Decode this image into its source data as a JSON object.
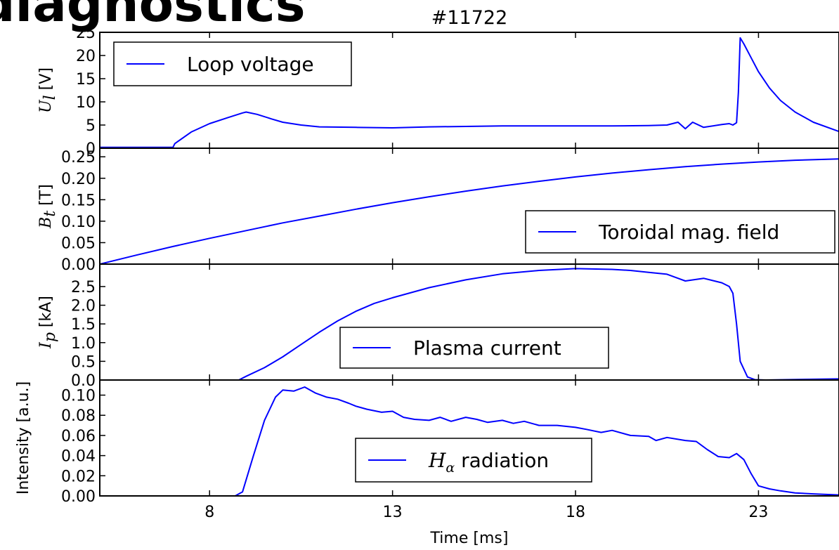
{
  "page": {
    "title": "diagnostics",
    "shot": "#11722",
    "line_color": "#0000ff"
  },
  "chart_data": {
    "type": "line",
    "shared_x": true,
    "xlabel": "Time [ms]",
    "xlim": [
      5,
      25.2
    ],
    "xticks": [
      8,
      13,
      18,
      23
    ],
    "xticklabels": [
      "8",
      "13",
      "18",
      "23"
    ],
    "panels": [
      {
        "ylabel_symbol": "U_l",
        "ylabel_unit": "[V]",
        "ylim": [
          0,
          25
        ],
        "yticks": [
          0,
          5,
          10,
          15,
          20,
          25
        ],
        "yticklabels": [
          "0",
          "5",
          "10",
          "15",
          "20",
          "25"
        ],
        "legend": "Loop voltage",
        "legend_loc": "upper left",
        "series": {
          "name": "Loop voltage",
          "x": [
            5.0,
            7.0,
            7.05,
            7.5,
            8.0,
            8.5,
            8.9,
            9.0,
            9.3,
            9.7,
            10.0,
            10.5,
            11.0,
            12.0,
            13.0,
            14.0,
            15.0,
            16.0,
            17.0,
            18.0,
            19.0,
            20.0,
            20.5,
            20.8,
            21.0,
            21.2,
            21.5,
            22.0,
            22.2,
            22.3,
            22.4,
            22.45,
            22.5,
            22.6,
            22.8,
            23.0,
            23.3,
            23.6,
            24.0,
            24.5,
            25.2
          ],
          "y": [
            0.2,
            0.2,
            1.0,
            3.5,
            5.3,
            6.6,
            7.6,
            7.8,
            7.3,
            6.3,
            5.6,
            5.0,
            4.6,
            4.5,
            4.4,
            4.6,
            4.7,
            4.8,
            4.8,
            4.8,
            4.8,
            4.9,
            5.0,
            5.6,
            4.2,
            5.6,
            4.5,
            5.1,
            5.3,
            5.0,
            5.5,
            12.0,
            23.8,
            22.5,
            19.5,
            16.5,
            13.0,
            10.3,
            7.8,
            5.6,
            3.6
          ]
        }
      },
      {
        "ylabel_symbol": "B_t",
        "ylabel_unit": "[T]",
        "ylim": [
          0,
          0.27
        ],
        "yticks": [
          0.0,
          0.05,
          0.1,
          0.15,
          0.2,
          0.25
        ],
        "yticklabels": [
          "0.00",
          "0.05",
          "0.10",
          "0.15",
          "0.20",
          "0.25"
        ],
        "legend": "Toroidal mag. field",
        "legend_loc": "lower right",
        "series": {
          "name": "Toroidal mag. field",
          "x": [
            5,
            6,
            7,
            8,
            9,
            10,
            11,
            12,
            13,
            14,
            15,
            16,
            17,
            18,
            19,
            20,
            21,
            22,
            23,
            24,
            25.2
          ],
          "y": [
            0.0,
            0.021,
            0.041,
            0.06,
            0.078,
            0.096,
            0.112,
            0.128,
            0.143,
            0.157,
            0.17,
            0.182,
            0.193,
            0.203,
            0.212,
            0.22,
            0.227,
            0.233,
            0.238,
            0.242,
            0.245
          ]
        }
      },
      {
        "ylabel_symbol": "I_p",
        "ylabel_unit": "[kA]",
        "ylim": [
          0,
          3.1
        ],
        "yticks": [
          0.0,
          0.5,
          1.0,
          1.5,
          2.0,
          2.5
        ],
        "yticklabels": [
          "0.0",
          "0.5",
          "1.0",
          "1.5",
          "2.0",
          "2.5"
        ],
        "legend": "Plasma current",
        "legend_loc": "lower center",
        "series": {
          "name": "Plasma current",
          "x": [
            7.0,
            8.5,
            8.8,
            9.0,
            9.5,
            10.0,
            10.5,
            11.0,
            11.5,
            12.0,
            12.5,
            13.0,
            14.0,
            15.0,
            16.0,
            17.0,
            18.0,
            19.0,
            19.5,
            20.0,
            20.5,
            20.8,
            21.0,
            21.5,
            22.0,
            22.2,
            22.3,
            22.4,
            22.5,
            22.7,
            22.9,
            23.2,
            25.2
          ],
          "y": [
            0.0,
            0.0,
            0.0,
            0.1,
            0.33,
            0.62,
            0.95,
            1.28,
            1.58,
            1.84,
            2.05,
            2.2,
            2.47,
            2.68,
            2.84,
            2.93,
            2.98,
            2.96,
            2.93,
            2.88,
            2.83,
            2.72,
            2.65,
            2.72,
            2.6,
            2.5,
            2.32,
            1.5,
            0.5,
            0.08,
            0.01,
            0.0,
            0.03
          ]
        }
      },
      {
        "ylabel_symbol": "",
        "ylabel_unit": "Intensity [a.u.]",
        "ylim": [
          0,
          0.115
        ],
        "yticks": [
          0.0,
          0.02,
          0.04,
          0.06,
          0.08,
          0.1
        ],
        "yticklabels": [
          "0.00",
          "0.02",
          "0.04",
          "0.06",
          "0.08",
          "0.10"
        ],
        "legend": "radiation",
        "legend_symbol": "H_α",
        "legend_loc": "lower center",
        "series": {
          "name": "radiation",
          "x": [
            5.0,
            8.7,
            8.9,
            9.2,
            9.5,
            9.8,
            10.0,
            10.3,
            10.6,
            10.9,
            11.2,
            11.5,
            11.8,
            12.0,
            12.3,
            12.7,
            13.0,
            13.3,
            13.6,
            14.0,
            14.3,
            14.6,
            15.0,
            15.3,
            15.6,
            16.0,
            16.3,
            16.6,
            17.0,
            17.5,
            18.0,
            18.3,
            18.7,
            19.0,
            19.5,
            20.0,
            20.2,
            20.5,
            21.0,
            21.3,
            21.6,
            21.9,
            22.2,
            22.4,
            22.6,
            22.8,
            23.0,
            23.3,
            23.6,
            24.0,
            24.5,
            25.2
          ],
          "y": [
            0.0,
            0.0,
            0.004,
            0.04,
            0.075,
            0.098,
            0.105,
            0.104,
            0.108,
            0.102,
            0.098,
            0.096,
            0.092,
            0.089,
            0.086,
            0.083,
            0.084,
            0.078,
            0.076,
            0.075,
            0.078,
            0.074,
            0.078,
            0.076,
            0.073,
            0.075,
            0.072,
            0.074,
            0.07,
            0.07,
            0.068,
            0.066,
            0.063,
            0.065,
            0.06,
            0.059,
            0.055,
            0.058,
            0.055,
            0.054,
            0.046,
            0.039,
            0.038,
            0.042,
            0.036,
            0.022,
            0.01,
            0.007,
            0.005,
            0.003,
            0.002,
            0.001
          ]
        }
      }
    ]
  }
}
